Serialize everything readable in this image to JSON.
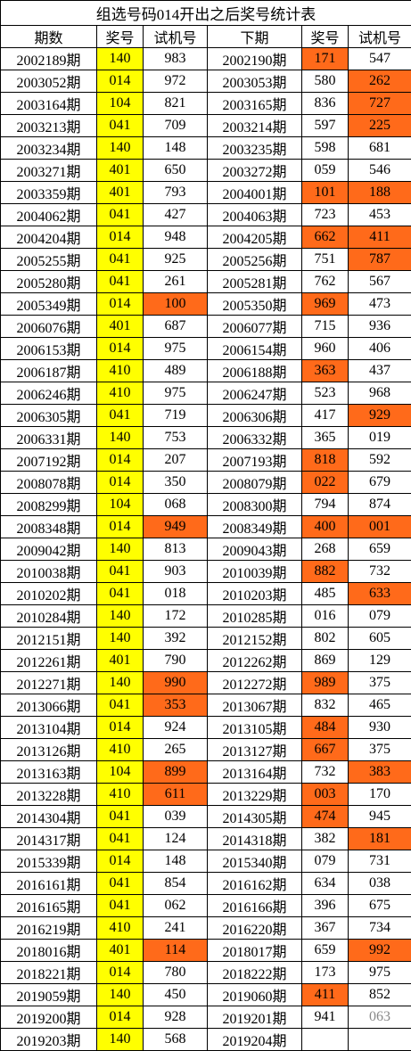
{
  "title": "组选号码014开出之后奖号统计表",
  "table": {
    "header": [
      "期数",
      "奖号",
      "试机号",
      "下期",
      "奖号",
      "试机号"
    ],
    "rows": [
      [
        "2002189期",
        "140",
        "983",
        "2002190期",
        "171",
        "547"
      ],
      [
        "2003052期",
        "014",
        "972",
        "2003053期",
        "580",
        "262"
      ],
      [
        "2003164期",
        "104",
        "821",
        "2003165期",
        "836",
        "727"
      ],
      [
        "2003213期",
        "041",
        "709",
        "2003214期",
        "597",
        "225"
      ],
      [
        "2003234期",
        "140",
        "148",
        "2003235期",
        "598",
        "681"
      ],
      [
        "2003271期",
        "401",
        "650",
        "2003272期",
        "059",
        "546"
      ],
      [
        "2003359期",
        "401",
        "793",
        "2004001期",
        "101",
        "188"
      ],
      [
        "2004062期",
        "041",
        "427",
        "2004063期",
        "723",
        "453"
      ],
      [
        "2004204期",
        "014",
        "948",
        "2004205期",
        "662",
        "411"
      ],
      [
        "2005255期",
        "041",
        "925",
        "2005256期",
        "751",
        "787"
      ],
      [
        "2005280期",
        "041",
        "261",
        "2005281期",
        "762",
        "567"
      ],
      [
        "2005349期",
        "014",
        "100",
        "2005350期",
        "969",
        "473"
      ],
      [
        "2006076期",
        "401",
        "687",
        "2006077期",
        "715",
        "936"
      ],
      [
        "2006153期",
        "014",
        "975",
        "2006154期",
        "960",
        "406"
      ],
      [
        "2006187期",
        "410",
        "489",
        "2006188期",
        "363",
        "437"
      ],
      [
        "2006246期",
        "410",
        "975",
        "2006247期",
        "523",
        "968"
      ],
      [
        "2006305期",
        "041",
        "719",
        "2006306期",
        "417",
        "929"
      ],
      [
        "2006331期",
        "140",
        "753",
        "2006332期",
        "365",
        "019"
      ],
      [
        "2007192期",
        "014",
        "207",
        "2007193期",
        "818",
        "592"
      ],
      [
        "2008078期",
        "014",
        "350",
        "2008079期",
        "022",
        "679"
      ],
      [
        "2008299期",
        "104",
        "068",
        "2008300期",
        "794",
        "874"
      ],
      [
        "2008348期",
        "014",
        "949",
        "2008349期",
        "400",
        "001"
      ],
      [
        "2009042期",
        "140",
        "813",
        "2009043期",
        "268",
        "659"
      ],
      [
        "2010038期",
        "041",
        "903",
        "2010039期",
        "882",
        "732"
      ],
      [
        "2010202期",
        "041",
        "018",
        "2010203期",
        "485",
        "633"
      ],
      [
        "2010284期",
        "140",
        "172",
        "2010285期",
        "016",
        "079"
      ],
      [
        "2012151期",
        "140",
        "392",
        "2012152期",
        "802",
        "605"
      ],
      [
        "2012261期",
        "401",
        "790",
        "2012262期",
        "869",
        "129"
      ],
      [
        "2012271期",
        "140",
        "990",
        "2012272期",
        "989",
        "375"
      ],
      [
        "2013066期",
        "041",
        "353",
        "2013067期",
        "832",
        "465"
      ],
      [
        "2013104期",
        "014",
        "924",
        "2013105期",
        "484",
        "930"
      ],
      [
        "2013126期",
        "410",
        "265",
        "2013127期",
        "667",
        "375"
      ],
      [
        "2013163期",
        "104",
        "899",
        "2013164期",
        "732",
        "383"
      ],
      [
        "2013228期",
        "410",
        "611",
        "2013229期",
        "003",
        "170"
      ],
      [
        "2014304期",
        "041",
        "039",
        "2014305期",
        "474",
        "945"
      ],
      [
        "2014317期",
        "041",
        "124",
        "2014318期",
        "382",
        "181"
      ],
      [
        "2015339期",
        "014",
        "148",
        "2015340期",
        "079",
        "731"
      ],
      [
        "2016161期",
        "041",
        "854",
        "2016162期",
        "634",
        "038"
      ],
      [
        "2016165期",
        "041",
        "062",
        "2016166期",
        "396",
        "675"
      ],
      [
        "2016219期",
        "410",
        "241",
        "2016220期",
        "367",
        "734"
      ],
      [
        "2018016期",
        "401",
        "114",
        "2018017期",
        "659",
        "992"
      ],
      [
        "2018221期",
        "014",
        "780",
        "2018222期",
        "173",
        "975"
      ],
      [
        "2019059期",
        "140",
        "450",
        "2019060期",
        "411",
        "852"
      ],
      [
        "2019200期",
        "014",
        "928",
        "2019201期",
        "941",
        "063"
      ],
      [
        "2019203期",
        "140",
        "568",
        "2019204期"
      ]
    ],
    "highlight_column": 1,
    "highlight_color": "#ffff00",
    "orange_color": "#ff6a1a",
    "orange_cells": [
      [
        0,
        4
      ],
      [
        1,
        5
      ],
      [
        2,
        5
      ],
      [
        3,
        5
      ],
      [
        6,
        4
      ],
      [
        6,
        5
      ],
      [
        8,
        4
      ],
      [
        8,
        5
      ],
      [
        9,
        5
      ],
      [
        11,
        2
      ],
      [
        11,
        4
      ],
      [
        14,
        4
      ],
      [
        16,
        5
      ],
      [
        18,
        4
      ],
      [
        19,
        4
      ],
      [
        21,
        2
      ],
      [
        21,
        4
      ],
      [
        21,
        5
      ],
      [
        23,
        4
      ],
      [
        24,
        5
      ],
      [
        28,
        2
      ],
      [
        28,
        4
      ],
      [
        29,
        2
      ],
      [
        30,
        4
      ],
      [
        31,
        4
      ],
      [
        32,
        2
      ],
      [
        32,
        5
      ],
      [
        33,
        2
      ],
      [
        33,
        4
      ],
      [
        34,
        4
      ],
      [
        35,
        5
      ],
      [
        40,
        2
      ],
      [
        40,
        5
      ],
      [
        42,
        4
      ]
    ],
    "muted_cells": [
      [
        43,
        5
      ]
    ]
  }
}
